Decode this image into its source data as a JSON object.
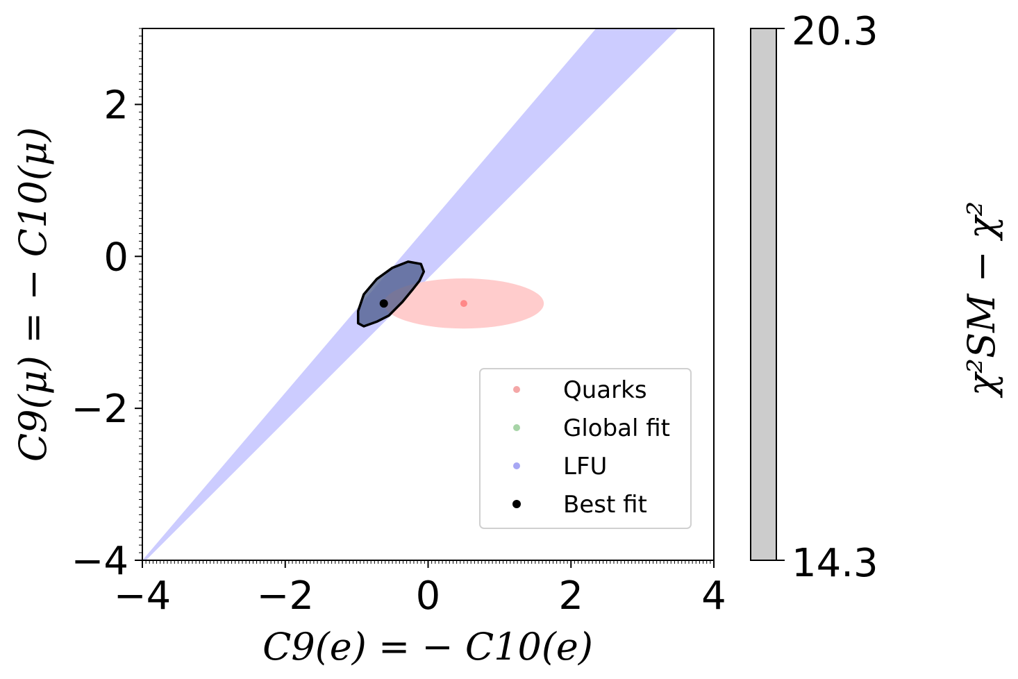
{
  "chart_data": {
    "type": "scatter",
    "xlabel": "C9(e) = − C10(e)",
    "ylabel": "C9(μ) = − C10(μ)",
    "xlim": [
      -4,
      4
    ],
    "ylim": [
      -4,
      3
    ],
    "x_ticks": [
      {
        "value": -4,
        "label": "−4"
      },
      {
        "value": -2,
        "label": "−2"
      },
      {
        "value": 0,
        "label": "0"
      },
      {
        "value": 2,
        "label": "2"
      },
      {
        "value": 4,
        "label": "4"
      }
    ],
    "y_ticks": [
      {
        "value": -4,
        "label": "−4"
      },
      {
        "value": -2,
        "label": "−2"
      },
      {
        "value": 0,
        "label": "0"
      },
      {
        "value": 2,
        "label": "2"
      }
    ],
    "regions": {
      "lfu": {
        "name": "LFU",
        "color": "#ccccff",
        "polygon": [
          [
            -4,
            -4
          ],
          [
            -3.95,
            -4
          ],
          [
            3.5,
            3
          ],
          [
            2.35,
            3
          ]
        ]
      },
      "quarks": {
        "name": "Quarks",
        "color": "#ffcccc",
        "center": [
          0.5,
          -0.62
        ],
        "half_width": 1.12,
        "half_height": 0.33,
        "point_color": "#ff8888"
      },
      "best_fit_contour": {
        "color": "#000000",
        "fill": "#4a5a88",
        "polygon": [
          [
            -0.98,
            -0.88
          ],
          [
            -0.9,
            -0.92
          ],
          [
            -0.72,
            -0.86
          ],
          [
            -0.55,
            -0.78
          ],
          [
            -0.36,
            -0.6
          ],
          [
            -0.22,
            -0.44
          ],
          [
            -0.12,
            -0.32
          ],
          [
            -0.06,
            -0.2
          ],
          [
            -0.1,
            -0.1
          ],
          [
            -0.28,
            -0.07
          ],
          [
            -0.5,
            -0.15
          ],
          [
            -0.72,
            -0.3
          ],
          [
            -0.9,
            -0.5
          ],
          [
            -0.98,
            -0.72
          ]
        ]
      }
    },
    "best_fit": {
      "name": "Best fit",
      "x": -0.62,
      "y": -0.62
    },
    "legend": {
      "placement": "lower-right",
      "entries": [
        {
          "label": "Quarks",
          "color": "#f4a7a7"
        },
        {
          "label": "Global fit",
          "color": "#a7d4a7"
        },
        {
          "label": "LFU",
          "color": "#a7a7f4"
        },
        {
          "label": "Best fit",
          "color": "#000000"
        }
      ]
    },
    "colorbar": {
      "label": "χ²SM − χ²",
      "max_label": "20.3",
      "min_label": "14.3",
      "color": "#cccccc"
    }
  }
}
